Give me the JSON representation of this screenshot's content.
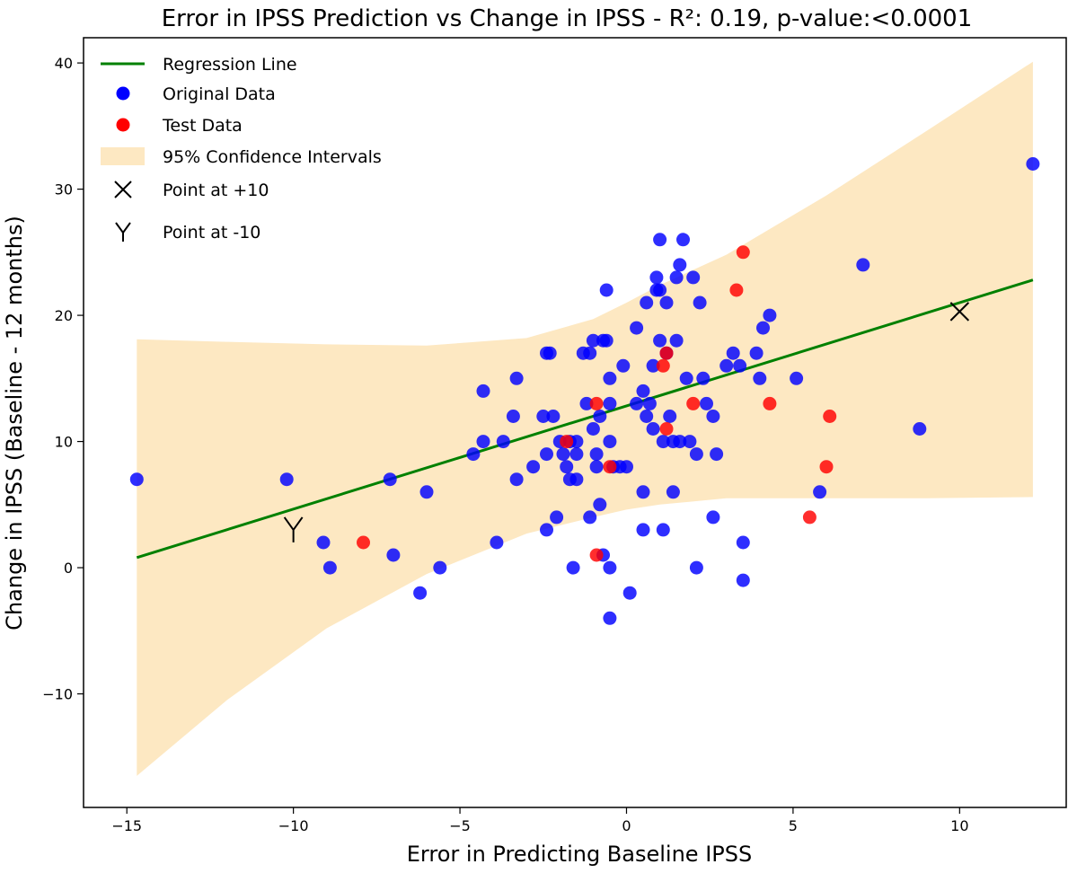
{
  "chart_data": {
    "type": "scatter",
    "title": "Error in IPSS Prediction vs Change in IPSS - R²: 0.19, p-value:<0.0001",
    "xlabel": "Error in Predicting Baseline IPSS",
    "ylabel": "Change in IPSS (Baseline - 12 months)",
    "xlim": [
      -16.3,
      13.2
    ],
    "ylim": [
      -19,
      42
    ],
    "xticks": [
      -15,
      -10,
      -5,
      0,
      5,
      10
    ],
    "yticks": [
      -10,
      0,
      10,
      20,
      30,
      40
    ],
    "xtick_labels": [
      "−15",
      "−10",
      "−5",
      "0",
      "5",
      "10"
    ],
    "ytick_labels": [
      "−10",
      "0",
      "10",
      "20",
      "30",
      "40"
    ],
    "grid": false,
    "legend_position": "top-left",
    "legend": [
      {
        "label": "Regression Line",
        "marker": "line",
        "color": "#008000"
      },
      {
        "label": "Original Data",
        "marker": "circle",
        "color": "#0000ff"
      },
      {
        "label": "Test Data",
        "marker": "circle",
        "color": "#ff0000"
      },
      {
        "label": "95% Confidence Intervals",
        "marker": "patch",
        "color": "#fde8c2"
      },
      {
        "label": "Point at +10",
        "marker": "X",
        "color": "#000000"
      },
      {
        "label": "Point at -10",
        "marker": "Y",
        "color": "#000000"
      }
    ],
    "regression_line": {
      "x": [
        -14.7,
        12.2
      ],
      "y": [
        0.8,
        22.8
      ],
      "color": "#008000"
    },
    "confidence_band": {
      "color": "#fde8c2",
      "x": [
        -14.7,
        -12,
        -9,
        -6,
        -3,
        -1,
        0,
        1,
        3,
        6,
        9,
        12.2
      ],
      "upper": [
        18.1,
        17.9,
        17.7,
        17.6,
        18.2,
        19.7,
        21.0,
        22.4,
        24.8,
        29.5,
        34.6,
        40.1
      ],
      "lower": [
        -16.5,
        -10.5,
        -4.8,
        -0.5,
        2.7,
        4.0,
        4.6,
        5.0,
        5.5,
        5.5,
        5.5,
        5.6
      ]
    },
    "series": [
      {
        "name": "Original Data",
        "color": "#0000ff",
        "points": [
          [
            -14.7,
            7
          ],
          [
            -10.2,
            7
          ],
          [
            -9.1,
            2
          ],
          [
            -8.9,
            0
          ],
          [
            -7.1,
            7
          ],
          [
            -7.0,
            1
          ],
          [
            -6.0,
            6
          ],
          [
            -6.2,
            -2
          ],
          [
            -5.6,
            0
          ],
          [
            -4.6,
            9
          ],
          [
            -4.3,
            14
          ],
          [
            -4.3,
            10
          ],
          [
            -3.9,
            2
          ],
          [
            -3.7,
            10
          ],
          [
            -3.4,
            12
          ],
          [
            -3.3,
            15
          ],
          [
            -3.3,
            7
          ],
          [
            -2.8,
            8
          ],
          [
            -2.5,
            12
          ],
          [
            -2.4,
            17
          ],
          [
            -2.3,
            17
          ],
          [
            -2.2,
            12
          ],
          [
            -2.1,
            4
          ],
          [
            -2.0,
            10
          ],
          [
            -2.4,
            3
          ],
          [
            -2.4,
            9
          ],
          [
            -1.9,
            9
          ],
          [
            -1.8,
            8
          ],
          [
            -1.7,
            10
          ],
          [
            -1.7,
            7
          ],
          [
            -1.5,
            10
          ],
          [
            -1.5,
            9
          ],
          [
            -1.5,
            7
          ],
          [
            -1.6,
            0
          ],
          [
            -1.3,
            17
          ],
          [
            -1.2,
            13
          ],
          [
            -1.1,
            17
          ],
          [
            -1.1,
            4
          ],
          [
            -1.0,
            18
          ],
          [
            -1.0,
            11
          ],
          [
            -0.9,
            8
          ],
          [
            -0.9,
            9
          ],
          [
            -0.8,
            12
          ],
          [
            -0.7,
            18
          ],
          [
            -0.6,
            22
          ],
          [
            -0.6,
            18
          ],
          [
            -0.5,
            15
          ],
          [
            -0.5,
            10
          ],
          [
            -0.5,
            13
          ],
          [
            -0.8,
            5
          ],
          [
            -0.7,
            1
          ],
          [
            -0.5,
            0
          ],
          [
            -0.5,
            -4
          ],
          [
            -0.4,
            8
          ],
          [
            -0.2,
            8
          ],
          [
            -0.1,
            16
          ],
          [
            0.0,
            8
          ],
          [
            0.1,
            -2
          ],
          [
            0.3,
            19
          ],
          [
            0.3,
            13
          ],
          [
            0.5,
            14
          ],
          [
            0.5,
            3
          ],
          [
            0.5,
            6
          ],
          [
            0.6,
            21
          ],
          [
            0.6,
            12
          ],
          [
            0.7,
            13
          ],
          [
            0.8,
            16
          ],
          [
            0.8,
            11
          ],
          [
            0.9,
            23
          ],
          [
            0.9,
            22
          ],
          [
            1.0,
            26
          ],
          [
            1.0,
            22
          ],
          [
            1.0,
            18
          ],
          [
            1.1,
            3
          ],
          [
            1.1,
            10
          ],
          [
            1.2,
            21
          ],
          [
            1.2,
            17
          ],
          [
            1.3,
            12
          ],
          [
            1.4,
            10
          ],
          [
            1.4,
            6
          ],
          [
            1.5,
            23
          ],
          [
            1.5,
            18
          ],
          [
            1.6,
            24
          ],
          [
            1.6,
            10
          ],
          [
            1.7,
            26
          ],
          [
            1.8,
            15
          ],
          [
            1.9,
            10
          ],
          [
            2.0,
            23
          ],
          [
            2.1,
            9
          ],
          [
            2.1,
            0
          ],
          [
            2.2,
            21
          ],
          [
            2.3,
            15
          ],
          [
            2.4,
            13
          ],
          [
            2.6,
            12
          ],
          [
            2.6,
            4
          ],
          [
            2.7,
            9
          ],
          [
            3.0,
            16
          ],
          [
            3.2,
            17
          ],
          [
            3.4,
            16
          ],
          [
            3.5,
            2
          ],
          [
            3.5,
            -1
          ],
          [
            3.9,
            17
          ],
          [
            4.0,
            15
          ],
          [
            4.1,
            19
          ],
          [
            4.3,
            20
          ],
          [
            5.1,
            15
          ],
          [
            5.8,
            6
          ],
          [
            7.1,
            24
          ],
          [
            8.8,
            11
          ],
          [
            12.2,
            32
          ]
        ]
      },
      {
        "name": "Test Data",
        "color": "#ff0000",
        "points": [
          [
            -7.9,
            2
          ],
          [
            -1.8,
            10
          ],
          [
            -0.9,
            13
          ],
          [
            -0.9,
            1
          ],
          [
            -0.5,
            8
          ],
          [
            1.1,
            16
          ],
          [
            1.2,
            17
          ],
          [
            1.2,
            11
          ],
          [
            2.0,
            13
          ],
          [
            3.3,
            22
          ],
          [
            3.5,
            25
          ],
          [
            4.3,
            13
          ],
          [
            5.5,
            4
          ],
          [
            6.0,
            8
          ],
          [
            6.1,
            12
          ]
        ]
      }
    ],
    "special_points": [
      {
        "name": "Point at +10",
        "marker": "X",
        "x": 10.0,
        "y": 20.3
      },
      {
        "name": "Point at -10",
        "marker": "Y",
        "x": -10.0,
        "y": 3.0
      }
    ]
  }
}
